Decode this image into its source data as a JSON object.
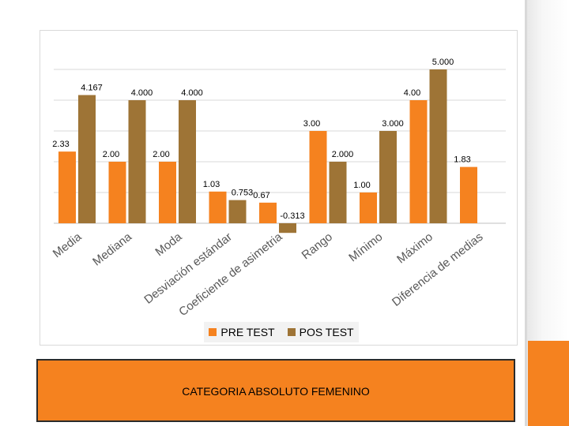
{
  "chart_data": {
    "type": "bar",
    "categories": [
      "Media",
      "Mediana",
      "Moda",
      "Desviación estándar",
      "Coeficiente de asimetria",
      "Rango",
      "Mínimo",
      "Máximo",
      "Diferencia de medias"
    ],
    "series": [
      {
        "name": "PRE TEST",
        "values": [
          2.33,
          2.0,
          2.0,
          1.03,
          0.67,
          3.0,
          1.0,
          4.0,
          1.83
        ],
        "labels": [
          "2.33",
          "2.00",
          "2.00",
          "1.03",
          "0.67",
          "3.00",
          "1.00",
          "4.00",
          "1.83"
        ],
        "color": "#f5821f"
      },
      {
        "name": "POS TEST",
        "values": [
          4.167,
          4.0,
          4.0,
          0.753,
          -0.313,
          2.0,
          3.0,
          5.0,
          null
        ],
        "labels": [
          "4.167",
          "4.000",
          "4.000",
          "0.753",
          "-0.313",
          "2.000",
          "3.000",
          "5.000",
          ""
        ],
        "color": "#9e7436"
      }
    ],
    "title": "CATEGORIA ABSOLUTO FEMENINO",
    "ylim": [
      -0.3,
      5.6
    ],
    "grid": true,
    "legend": "bottom"
  }
}
